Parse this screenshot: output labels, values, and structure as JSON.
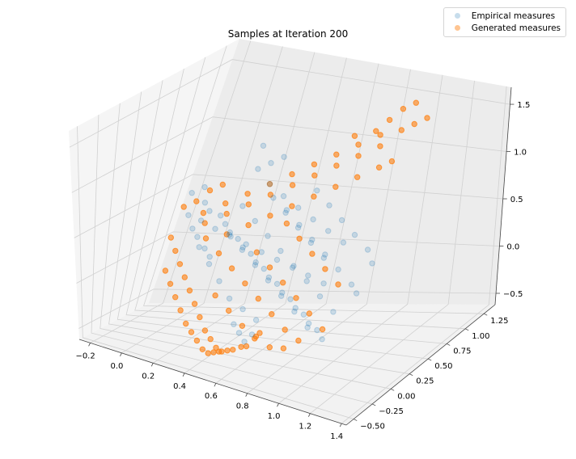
{
  "chart_data": {
    "type": "scatter",
    "projection": "3d",
    "title": "Samples at Iteration 200",
    "xlabel": "",
    "ylabel": "",
    "zlabel": "",
    "xlim": [
      -0.27,
      1.43
    ],
    "ylim": [
      -0.6,
      1.4
    ],
    "zlim": [
      -0.62,
      1.68
    ],
    "x_ticks": [
      "−0.2",
      "0.0",
      "0.2",
      "0.4",
      "0.6",
      "0.8",
      "1.0",
      "1.2",
      "1.4"
    ],
    "y_ticks": [
      "−0.50",
      "−0.25",
      "0.00",
      "0.25",
      "0.50",
      "0.75",
      "1.00",
      "1.25"
    ],
    "z_ticks": [
      "−0.5",
      "0.0",
      "0.5",
      "1.0",
      "1.5"
    ],
    "grid": true,
    "legend_placement": "top-right",
    "series": [
      {
        "name": "Empirical measures",
        "color": "#1f77b4",
        "alpha": 0.08,
        "points": [
          [
            0.0,
            0.55,
            0.65
          ],
          [
            0.05,
            0.6,
            0.7
          ],
          [
            0.1,
            0.5,
            0.6
          ],
          [
            0.15,
            0.45,
            0.55
          ],
          [
            0.2,
            0.5,
            0.5
          ],
          [
            0.25,
            0.45,
            0.45
          ],
          [
            0.3,
            0.4,
            0.4
          ],
          [
            0.35,
            0.4,
            0.35
          ],
          [
            0.4,
            0.35,
            0.3
          ],
          [
            0.45,
            0.35,
            0.25
          ],
          [
            0.5,
            0.3,
            0.2
          ],
          [
            0.55,
            0.3,
            0.15
          ],
          [
            0.6,
            0.25,
            0.1
          ],
          [
            0.65,
            0.25,
            0.05
          ],
          [
            0.7,
            0.2,
            0.0
          ],
          [
            0.75,
            0.2,
            -0.05
          ],
          [
            0.8,
            0.15,
            -0.1
          ],
          [
            0.85,
            0.15,
            -0.15
          ],
          [
            0.9,
            0.1,
            -0.2
          ],
          [
            0.95,
            0.1,
            -0.25
          ],
          [
            1.0,
            0.05,
            -0.3
          ],
          [
            0.3,
            0.7,
            0.9
          ],
          [
            0.35,
            0.75,
            0.95
          ],
          [
            0.4,
            0.8,
            1.0
          ],
          [
            0.25,
            0.85,
            1.05
          ],
          [
            0.45,
            0.6,
            0.7
          ],
          [
            0.55,
            0.55,
            0.6
          ],
          [
            0.65,
            0.5,
            0.5
          ],
          [
            0.75,
            0.45,
            0.4
          ],
          [
            0.85,
            0.4,
            0.3
          ],
          [
            0.2,
            0.2,
            0.3
          ],
          [
            0.3,
            0.1,
            0.2
          ],
          [
            0.4,
            0.0,
            0.1
          ],
          [
            0.5,
            -0.1,
            0.0
          ],
          [
            0.6,
            -0.15,
            -0.05
          ],
          [
            0.7,
            -0.2,
            -0.1
          ],
          [
            0.5,
            0.7,
            0.55
          ],
          [
            0.6,
            0.65,
            0.45
          ],
          [
            0.7,
            0.6,
            0.35
          ],
          [
            0.8,
            0.55,
            0.25
          ],
          [
            0.9,
            0.5,
            0.15
          ],
          [
            1.0,
            0.45,
            0.05
          ],
          [
            1.05,
            0.4,
            0.0
          ],
          [
            0.35,
            0.25,
            0.45
          ],
          [
            0.45,
            0.2,
            0.35
          ],
          [
            0.55,
            0.15,
            0.25
          ],
          [
            0.65,
            0.1,
            0.15
          ],
          [
            0.75,
            0.05,
            0.05
          ],
          [
            0.85,
            0.0,
            -0.05
          ],
          [
            0.95,
            -0.05,
            -0.15
          ],
          [
            0.1,
            0.35,
            0.4
          ],
          [
            0.15,
            0.3,
            0.35
          ],
          [
            0.2,
            0.3,
            0.25
          ],
          [
            0.25,
            0.25,
            0.2
          ],
          [
            0.3,
            0.55,
            0.6
          ],
          [
            0.4,
            0.5,
            0.5
          ],
          [
            0.5,
            0.45,
            0.4
          ],
          [
            0.6,
            0.4,
            0.3
          ],
          [
            0.7,
            0.35,
            0.2
          ],
          [
            0.8,
            0.3,
            0.1
          ],
          [
            0.9,
            0.25,
            0.0
          ],
          [
            1.0,
            0.2,
            -0.1
          ],
          [
            0.6,
            0.85,
            0.7
          ],
          [
            0.7,
            0.8,
            0.6
          ],
          [
            0.8,
            0.75,
            0.5
          ],
          [
            0.9,
            0.7,
            0.4
          ],
          [
            1.0,
            0.65,
            0.3
          ],
          [
            1.05,
            0.6,
            0.2
          ],
          [
            0.05,
            0.4,
            0.5
          ],
          [
            0.12,
            0.42,
            0.46
          ],
          [
            0.22,
            0.38,
            0.42
          ],
          [
            0.32,
            0.36,
            0.38
          ],
          [
            0.42,
            0.34,
            0.34
          ],
          [
            0.52,
            0.32,
            0.3
          ],
          [
            0.62,
            0.3,
            0.26
          ],
          [
            0.72,
            0.28,
            0.22
          ],
          [
            0.82,
            0.26,
            0.18
          ],
          [
            0.92,
            0.24,
            0.14
          ],
          [
            0.5,
            0.0,
            -0.3
          ],
          [
            0.55,
            -0.05,
            -0.35
          ],
          [
            0.6,
            -0.1,
            -0.4
          ],
          [
            0.65,
            -0.12,
            -0.3
          ],
          [
            0.4,
            0.65,
            0.8
          ],
          [
            0.5,
            0.62,
            0.72
          ],
          [
            0.6,
            0.6,
            0.64
          ],
          [
            0.7,
            0.58,
            0.56
          ],
          [
            0.8,
            0.56,
            0.48
          ],
          [
            0.9,
            0.54,
            0.4
          ]
        ]
      },
      {
        "name": "Generated measures",
        "color": "#ff7f0e",
        "alpha": 0.25,
        "points": [
          [
            0.0,
            0.3,
            0.3
          ],
          [
            0.05,
            0.25,
            0.2
          ],
          [
            0.1,
            0.2,
            0.1
          ],
          [
            0.15,
            0.15,
            0.0
          ],
          [
            0.2,
            0.1,
            -0.1
          ],
          [
            0.25,
            0.05,
            -0.2
          ],
          [
            0.3,
            0.0,
            -0.3
          ],
          [
            0.35,
            -0.05,
            -0.4
          ],
          [
            0.4,
            -0.1,
            -0.45
          ],
          [
            0.45,
            -0.15,
            -0.5
          ],
          [
            0.5,
            -0.2,
            -0.5
          ],
          [
            0.55,
            -0.25,
            -0.45
          ],
          [
            0.6,
            -0.3,
            -0.4
          ],
          [
            0.65,
            -0.3,
            -0.35
          ],
          [
            0.7,
            -0.35,
            -0.3
          ],
          [
            0.75,
            -0.35,
            -0.2
          ],
          [
            0.8,
            -0.4,
            -0.1
          ],
          [
            0.1,
            0.5,
            0.5
          ],
          [
            0.2,
            0.55,
            0.6
          ],
          [
            0.3,
            0.6,
            0.7
          ],
          [
            0.4,
            0.65,
            0.8
          ],
          [
            0.5,
            0.7,
            0.9
          ],
          [
            0.6,
            0.75,
            1.0
          ],
          [
            0.7,
            0.8,
            1.1
          ],
          [
            0.8,
            0.85,
            1.2
          ],
          [
            0.9,
            0.9,
            1.3
          ],
          [
            1.0,
            0.95,
            1.35
          ],
          [
            1.05,
            1.0,
            1.4
          ],
          [
            1.1,
            1.05,
            1.45
          ],
          [
            0.6,
            0.5,
            0.7
          ],
          [
            0.7,
            0.55,
            0.8
          ],
          [
            0.8,
            0.6,
            0.9
          ],
          [
            0.9,
            0.65,
            1.0
          ],
          [
            1.0,
            0.7,
            1.1
          ],
          [
            1.05,
            0.75,
            1.15
          ],
          [
            0.2,
            0.3,
            0.35
          ],
          [
            0.3,
            0.25,
            0.25
          ],
          [
            0.4,
            0.2,
            0.15
          ],
          [
            0.5,
            0.15,
            0.05
          ],
          [
            0.6,
            0.1,
            -0.05
          ],
          [
            0.7,
            0.05,
            -0.15
          ],
          [
            0.8,
            0.0,
            -0.25
          ],
          [
            0.9,
            -0.05,
            -0.3
          ],
          [
            0.15,
            0.4,
            0.45
          ],
          [
            0.25,
            0.45,
            0.55
          ],
          [
            0.35,
            0.5,
            0.65
          ],
          [
            0.45,
            0.55,
            0.75
          ],
          [
            0.55,
            0.6,
            0.85
          ],
          [
            0.65,
            0.65,
            0.95
          ],
          [
            0.75,
            0.7,
            1.05
          ],
          [
            0.85,
            0.75,
            1.15
          ],
          [
            0.95,
            0.8,
            1.25
          ],
          [
            0.05,
            0.1,
            0.05
          ],
          [
            0.1,
            0.05,
            -0.05
          ],
          [
            0.15,
            0.0,
            -0.15
          ],
          [
            0.2,
            -0.05,
            -0.25
          ],
          [
            0.25,
            -0.1,
            -0.35
          ],
          [
            0.3,
            -0.15,
            -0.4
          ],
          [
            0.35,
            -0.2,
            -0.45
          ],
          [
            0.4,
            -0.25,
            -0.5
          ],
          [
            0.45,
            -0.3,
            -0.5
          ],
          [
            0.5,
            -0.35,
            -0.45
          ],
          [
            0.55,
            -0.4,
            -0.4
          ],
          [
            0.3,
            0.35,
            0.4
          ],
          [
            0.4,
            0.4,
            0.5
          ],
          [
            0.5,
            0.45,
            0.6
          ],
          [
            0.6,
            0.45,
            0.55
          ],
          [
            0.7,
            0.4,
            0.45
          ],
          [
            0.8,
            0.35,
            0.35
          ],
          [
            0.9,
            0.3,
            0.25
          ],
          [
            1.0,
            0.25,
            0.15
          ],
          [
            0.0,
            0.45,
            0.55
          ],
          [
            0.05,
            0.5,
            0.6
          ],
          [
            0.1,
            0.55,
            0.7
          ],
          [
            0.15,
            0.6,
            0.75
          ],
          [
            0.9,
            1.0,
            1.4
          ],
          [
            0.95,
            1.05,
            1.5
          ],
          [
            1.0,
            1.1,
            1.55
          ],
          [
            0.85,
            0.95,
            1.3
          ],
          [
            0.75,
            0.9,
            1.25
          ],
          [
            0.5,
            0.3,
            0.3
          ],
          [
            0.6,
            0.25,
            0.2
          ],
          [
            0.7,
            0.2,
            0.1
          ],
          [
            0.8,
            0.15,
            0.0
          ],
          [
            0.9,
            0.1,
            -0.1
          ],
          [
            1.0,
            0.05,
            -0.2
          ],
          [
            0.35,
            0.1,
            -0.1
          ],
          [
            0.45,
            0.05,
            -0.2
          ],
          [
            0.55,
            0.0,
            -0.3
          ],
          [
            0.65,
            -0.05,
            -0.35
          ],
          [
            0.75,
            -0.1,
            -0.4
          ],
          [
            0.85,
            -0.15,
            -0.35
          ]
        ]
      }
    ]
  }
}
